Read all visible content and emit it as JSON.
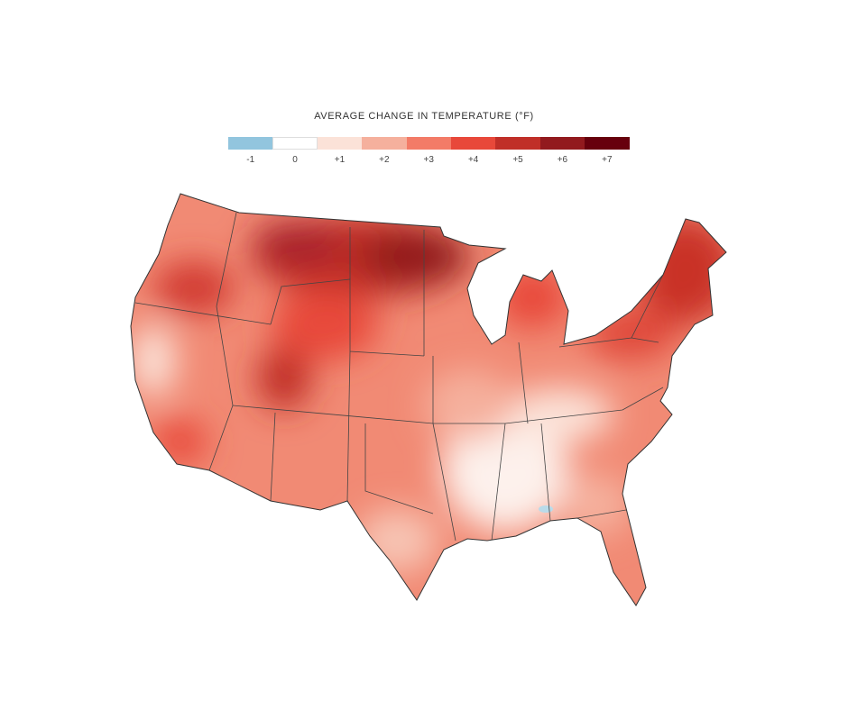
{
  "legend": {
    "title": "AVERAGE CHANGE IN TEMPERATURE (°F)",
    "bins": [
      {
        "label": "-1",
        "color": "#92c5de"
      },
      {
        "label": "0",
        "color": "#ffffff"
      },
      {
        "label": "+1",
        "color": "#fbe2d8"
      },
      {
        "label": "+2",
        "color": "#f5b09d"
      },
      {
        "label": "+3",
        "color": "#f37b67"
      },
      {
        "label": "+4",
        "color": "#e8483a"
      },
      {
        "label": "+5",
        "color": "#c02f28"
      },
      {
        "label": "+6",
        "color": "#921a1e"
      },
      {
        "label": "+7",
        "color": "#67000d"
      }
    ]
  },
  "map": {
    "region": "contiguous United States",
    "pattern": "strongest warming in northern plains, upper Midwest, Northeast and Utah; weakest in the Southeast"
  }
}
